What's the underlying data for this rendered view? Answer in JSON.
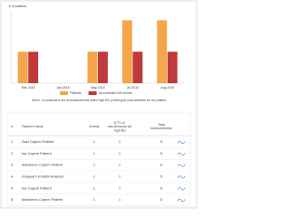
{
  "chart_data": {
    "type": "bar",
    "ylabel": "# of patients",
    "categories": [
      "Mar 2016",
      "Apr 2016",
      "May 2016",
      "Jul 2016",
      "Aug 2016"
    ],
    "series": [
      {
        "name": "Patients",
        "color": "#f5a54a",
        "values": [
          1,
          0,
          1,
          2,
          2
        ]
      },
      {
        "name": "Uncontrolled BG events",
        "color": "#c0393b",
        "values": [
          1,
          0,
          1,
          1,
          1
        ]
      }
    ],
    "ylim": [
      0,
      2.3
    ],
    "legend": "bottom",
    "caption": "Event - A consecutive set of measurements where high BG (≥180mg/dL) was detected for one patient"
  },
  "table": {
    "header": [
      "#",
      "Patient's name",
      "Events",
      "Q'TY of measurements with high BG",
      "Total measurements"
    ],
    "rows": [
      [
        "1",
        "Zaid Cayem Patient",
        "1",
        "1",
        "5"
      ],
      [
        "2",
        "Isa Cayem Patient",
        "1",
        "1",
        "5"
      ],
      [
        "3",
        "Mahamen Cayem Patient",
        "1",
        "1",
        "6"
      ],
      [
        "4",
        "Khayyam Khalifa Mutasim",
        "1",
        "1",
        "5"
      ],
      [
        "5",
        "Isa Cayem Patient",
        "1",
        "1",
        "5"
      ],
      [
        "6",
        "Mahamen Cayem Patient",
        "1",
        "1",
        "5"
      ]
    ]
  }
}
